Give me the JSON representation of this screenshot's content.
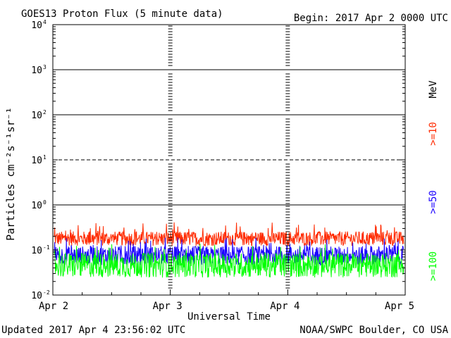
{
  "header": {
    "title": "GOES13 Proton Flux (5 minute data)",
    "begin": "Begin: 2017 Apr 2 0000 UTC"
  },
  "footer": {
    "updated": "Updated 2017 Apr  4 23:56:02 UTC",
    "credit": "NOAA/SWPC Boulder, CO USA"
  },
  "chart_data": {
    "type": "line",
    "title": "GOES13 Proton Flux (5 minute data)",
    "xlabel": "Universal Time",
    "ylabel": "Particles cm⁻²s⁻¹sr⁻¹",
    "y_scale": "log",
    "ylim": [
      0.01,
      10000
    ],
    "y_ticks": [
      {
        "base": "10",
        "exp": "-2",
        "value": 0.01
      },
      {
        "base": "10",
        "exp": "-1",
        "value": 0.1
      },
      {
        "base": "10",
        "exp": "0",
        "value": 1
      },
      {
        "base": "10",
        "exp": "1",
        "value": 10
      },
      {
        "base": "10",
        "exp": "2",
        "value": 100
      },
      {
        "base": "10",
        "exp": "3",
        "value": 1000
      },
      {
        "base": "10",
        "exp": "4",
        "value": 10000
      }
    ],
    "x_ticks": [
      "Apr 2",
      "Apr 3",
      "Apr 4",
      "Apr 5"
    ],
    "xlim": [
      "2017-04-02",
      "2017-04-05"
    ],
    "threshold_lines": [
      {
        "value": 10,
        "style": "dashed"
      },
      {
        "value": 1,
        "style": "solid"
      },
      {
        "value": 100,
        "style": "solid"
      },
      {
        "value": 1000,
        "style": "solid"
      }
    ],
    "unit": "MeV",
    "series": [
      {
        "name": ">=10",
        "color": "#ff2a00",
        "baseline": 0.16,
        "spread": 0.32
      },
      {
        "name": ">=50",
        "color": "#1a00ff",
        "baseline": 0.065,
        "spread": 0.42
      },
      {
        "name": ">=100",
        "color": "#00ff00",
        "baseline": 0.038,
        "spread": 0.55
      }
    ],
    "grid": false,
    "legend": "right-vertical"
  }
}
